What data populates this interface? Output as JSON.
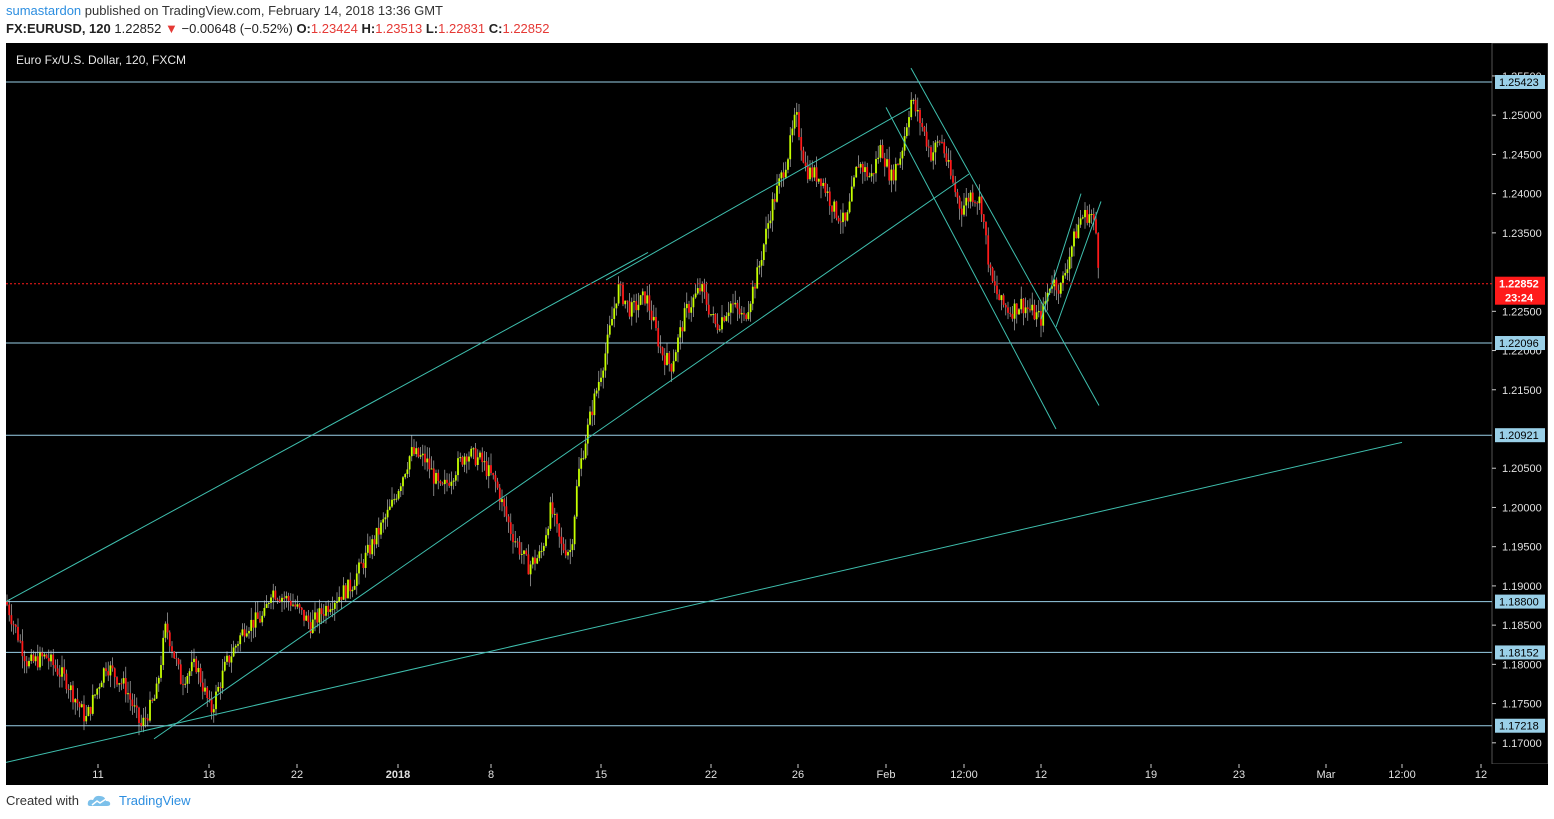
{
  "header": {
    "user": "sumastardon",
    "published_text": " published on TradingView.com, February 14, 2018 13:36 GMT",
    "symbol": "FX:EURUSD, 120",
    "price": "1.22852",
    "change": "−0.00648 (−0.52%)",
    "open_label": "O:",
    "open": "1.23424",
    "high_label": "H:",
    "high": "1.23513",
    "low_label": "L:",
    "low": "1.22831",
    "close_label": "C:",
    "close": "1.22852"
  },
  "footer": {
    "created_with": "Created with",
    "brand": "TradingView"
  },
  "colors": {
    "background": "#000000",
    "up": "#c6ff00",
    "down": "#ff1a1a",
    "line": "#3fbfae",
    "level": "#9ad0e8",
    "last_price": "#ff1a1a"
  },
  "chart_data": {
    "type": "candlestick",
    "title": "Euro Fx/U.S. Dollar, 120, FXCM",
    "ylim": [
      1.1673,
      1.2592
    ],
    "y_ticks": [
      "1.25500",
      "1.25000",
      "1.24500",
      "1.24000",
      "1.23500",
      "1.22500",
      "1.22000",
      "1.21500",
      "1.20500",
      "1.20000",
      "1.19500",
      "1.19000",
      "1.18500",
      "1.18000",
      "1.17500",
      "1.17000"
    ],
    "x_ticks": [
      "11",
      "18",
      "22",
      "2018",
      "8",
      "15",
      "22",
      "26",
      "Feb",
      "12:00",
      "12",
      "19",
      "23",
      "Mar",
      "12:00",
      "12"
    ],
    "horizontal_levels": [
      "1.25423",
      "1.22096",
      "1.20921",
      "1.18800",
      "1.18152",
      "1.17218"
    ],
    "last_price": {
      "value": "1.22852",
      "countdown": "23:24"
    },
    "path": [
      [
        0,
        1.188
      ],
      [
        22,
        1.18
      ],
      [
        40,
        1.181
      ],
      [
        60,
        1.178
      ],
      [
        80,
        1.173
      ],
      [
        100,
        1.18
      ],
      [
        120,
        1.177
      ],
      [
        135,
        1.172
      ],
      [
        150,
        1.176
      ],
      [
        160,
        1.185
      ],
      [
        175,
        1.178
      ],
      [
        190,
        1.18
      ],
      [
        205,
        1.174
      ],
      [
        220,
        1.18
      ],
      [
        240,
        1.185
      ],
      [
        258,
        1.186
      ],
      [
        265,
        1.1895
      ],
      [
        285,
        1.188
      ],
      [
        305,
        1.185
      ],
      [
        325,
        1.188
      ],
      [
        345,
        1.19
      ],
      [
        365,
        1.195
      ],
      [
        385,
        1.2
      ],
      [
        405,
        1.207
      ],
      [
        420,
        1.206
      ],
      [
        435,
        1.202
      ],
      [
        445,
        1.204
      ],
      [
        460,
        1.207
      ],
      [
        475,
        1.206
      ],
      [
        490,
        1.203
      ],
      [
        505,
        1.197
      ],
      [
        522,
        1.1925
      ],
      [
        535,
        1.194
      ],
      [
        545,
        1.2
      ],
      [
        555,
        1.195
      ],
      [
        565,
        1.1945
      ],
      [
        572,
        1.204
      ],
      [
        585,
        1.212
      ],
      [
        600,
        1.22
      ],
      [
        612,
        1.228
      ],
      [
        625,
        1.225
      ],
      [
        640,
        1.227
      ],
      [
        655,
        1.22
      ],
      [
        665,
        1.218
      ],
      [
        680,
        1.225
      ],
      [
        695,
        1.228
      ],
      [
        710,
        1.223
      ],
      [
        725,
        1.226
      ],
      [
        738,
        1.224
      ],
      [
        752,
        1.23
      ],
      [
        765,
        1.238
      ],
      [
        775,
        1.242
      ],
      [
        782,
        1.245
      ],
      [
        790,
        1.25
      ],
      [
        800,
        1.243
      ],
      [
        815,
        1.242
      ],
      [
        828,
        1.238
      ],
      [
        840,
        1.236
      ],
      [
        852,
        1.244
      ],
      [
        865,
        1.242
      ],
      [
        875,
        1.246
      ],
      [
        885,
        1.242
      ],
      [
        895,
        1.245
      ],
      [
        905,
        1.252
      ],
      [
        915,
        1.249
      ],
      [
        925,
        1.245
      ],
      [
        935,
        1.247
      ],
      [
        945,
        1.242
      ],
      [
        955,
        1.238
      ],
      [
        965,
        1.24
      ],
      [
        975,
        1.239
      ],
      [
        985,
        1.229
      ],
      [
        995,
        1.226
      ],
      [
        1005,
        1.225
      ],
      [
        1015,
        1.226
      ],
      [
        1025,
        1.225
      ],
      [
        1035,
        1.224
      ],
      [
        1045,
        1.229
      ],
      [
        1055,
        1.228
      ],
      [
        1065,
        1.233
      ],
      [
        1075,
        1.237
      ],
      [
        1085,
        1.2375
      ],
      [
        1090,
        1.235
      ],
      [
        1094,
        1.22852
      ]
    ],
    "trendlines": [
      [
        [
          0,
          1.188
        ],
        [
          642,
          1.2325
        ]
      ],
      [
        [
          148,
          1.1705
        ],
        [
          963,
          1.2425
        ]
      ],
      [
        [
          600,
          1.229
        ],
        [
          905,
          1.251
        ]
      ],
      [
        [
          0,
          1.1675
        ],
        [
          1396,
          1.2083
        ]
      ],
      [
        [
          905,
          1.256
        ],
        [
          1093,
          1.213
        ]
      ],
      [
        [
          880,
          1.251
        ],
        [
          1050,
          1.21
        ]
      ],
      [
        [
          1035,
          1.224
        ],
        [
          1075,
          1.24
        ]
      ],
      [
        [
          1050,
          1.223
        ],
        [
          1095,
          1.239
        ]
      ]
    ]
  }
}
